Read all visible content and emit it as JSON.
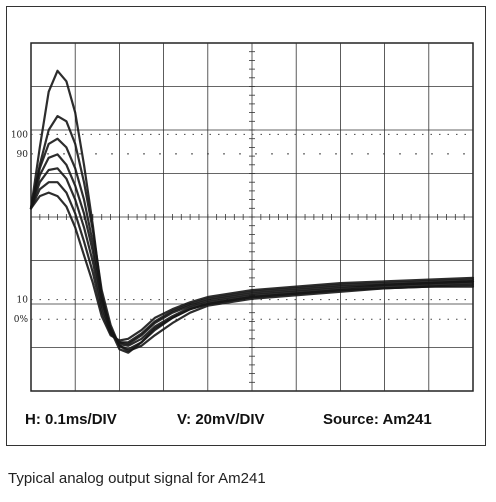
{
  "chart_data": {
    "type": "line",
    "title": "",
    "xlabel": "",
    "ylabel": "",
    "grid": true,
    "xlim": [
      0,
      1.0
    ],
    "ylim": [
      -100,
      100
    ],
    "x_unit": "ms",
    "y_unit": "mV",
    "screen_markers": [
      "100",
      "90",
      "10",
      "0%"
    ],
    "settings": {
      "h": "H: 0.1ms/DIV",
      "v": "V: 20mV/DIV",
      "source": "Source: Am241"
    },
    "series": [
      {
        "x": [
          0.0,
          0.02,
          0.04,
          0.06,
          0.08,
          0.1,
          0.12,
          0.14,
          0.16,
          0.18,
          0.2,
          0.22,
          0.25,
          0.28,
          0.32,
          0.36,
          0.4,
          0.5,
          0.6,
          0.7,
          0.8,
          0.9,
          1.0
        ],
        "values": [
          5,
          40,
          72,
          84,
          78,
          60,
          30,
          -5,
          -45,
          -65,
          -76,
          -78,
          -72,
          -64,
          -58,
          -53,
          -50,
          -46,
          -44,
          -42,
          -41,
          -40,
          -40
        ]
      },
      {
        "x": [
          0.0,
          0.02,
          0.04,
          0.06,
          0.08,
          0.1,
          0.12,
          0.14,
          0.16,
          0.18,
          0.2,
          0.22,
          0.25,
          0.28,
          0.32,
          0.36,
          0.4,
          0.5,
          0.6,
          0.7,
          0.8,
          0.9,
          1.0
        ],
        "values": [
          5,
          30,
          50,
          58,
          55,
          42,
          20,
          -8,
          -42,
          -62,
          -74,
          -77,
          -74,
          -68,
          -61,
          -55,
          -51,
          -47,
          -45,
          -43,
          -41,
          -40,
          -39
        ]
      },
      {
        "x": [
          0.0,
          0.02,
          0.04,
          0.06,
          0.08,
          0.1,
          0.12,
          0.14,
          0.16,
          0.18,
          0.2,
          0.22,
          0.25,
          0.28,
          0.32,
          0.36,
          0.4,
          0.5,
          0.6,
          0.7,
          0.8,
          0.9,
          1.0
        ],
        "values": [
          5,
          28,
          42,
          45,
          40,
          28,
          10,
          -15,
          -46,
          -64,
          -74,
          -76,
          -72,
          -65,
          -58,
          -53,
          -50,
          -46,
          -44,
          -42,
          -40,
          -39,
          -38
        ]
      },
      {
        "x": [
          0.0,
          0.02,
          0.04,
          0.06,
          0.08,
          0.1,
          0.12,
          0.14,
          0.16,
          0.18,
          0.2,
          0.22,
          0.25,
          0.28,
          0.32,
          0.36,
          0.4,
          0.5,
          0.6,
          0.7,
          0.8,
          0.9,
          1.0
        ],
        "values": [
          5,
          24,
          34,
          36,
          30,
          18,
          2,
          -20,
          -48,
          -65,
          -73,
          -74,
          -70,
          -63,
          -57,
          -52,
          -49,
          -45,
          -43,
          -41,
          -39,
          -38,
          -37
        ]
      },
      {
        "x": [
          0.0,
          0.02,
          0.04,
          0.06,
          0.08,
          0.1,
          0.12,
          0.14,
          0.16,
          0.18,
          0.2,
          0.22,
          0.25,
          0.28,
          0.32,
          0.36,
          0.4,
          0.5,
          0.6,
          0.7,
          0.8,
          0.9,
          1.0
        ],
        "values": [
          5,
          20,
          27,
          28,
          22,
          10,
          -6,
          -26,
          -51,
          -66,
          -72,
          -73,
          -68,
          -61,
          -55,
          -51,
          -48,
          -44,
          -42,
          -40,
          -39,
          -38,
          -37
        ]
      },
      {
        "x": [
          0.0,
          0.02,
          0.04,
          0.06,
          0.08,
          0.1,
          0.12,
          0.14,
          0.16,
          0.18,
          0.2,
          0.22,
          0.25,
          0.28,
          0.32,
          0.36,
          0.4,
          0.5,
          0.6,
          0.7,
          0.8,
          0.9,
          1.0
        ],
        "values": [
          5,
          16,
          20,
          20,
          14,
          2,
          -14,
          -32,
          -54,
          -67,
          -72,
          -72,
          -67,
          -60,
          -54,
          -50,
          -47,
          -43,
          -41,
          -39,
          -38,
          -37,
          -36
        ]
      },
      {
        "x": [
          0.0,
          0.02,
          0.04,
          0.06,
          0.08,
          0.1,
          0.12,
          0.14,
          0.16,
          0.18,
          0.2,
          0.22,
          0.25,
          0.28,
          0.32,
          0.36,
          0.4,
          0.5,
          0.6,
          0.7,
          0.8,
          0.9,
          1.0
        ],
        "values": [
          5,
          12,
          14,
          12,
          6,
          -6,
          -22,
          -38,
          -57,
          -68,
          -71,
          -70,
          -65,
          -58,
          -53,
          -49,
          -46,
          -42,
          -40,
          -38,
          -37,
          -36,
          -35
        ]
      }
    ]
  },
  "caption": "Typical analog output signal for Am241"
}
